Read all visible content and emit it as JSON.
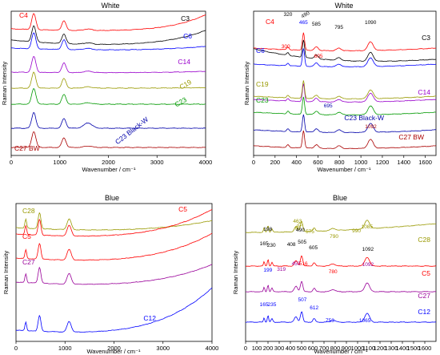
{
  "chart_data": [
    {
      "type": "line",
      "title": "White",
      "xlabel": "Wavenumber / cm⁻¹",
      "ylabel": "Raman Intensity",
      "xlim": [
        0,
        4000
      ],
      "xticks": [
        0,
        1000,
        2000,
        3000,
        4000
      ],
      "series": [
        {
          "name": "C3",
          "color": "#000000",
          "label_x": 3350,
          "peaks": [
            [
              465,
              1.0
            ],
            [
              1085,
              0.6
            ]
          ],
          "baseline": 0.95,
          "bow": 0.25,
          "rise": 0.55
        },
        {
          "name": "C4",
          "color": "#ff0000",
          "label_x": 120,
          "peaks": [
            [
              465,
              0.8
            ],
            [
              1085,
              0.5
            ]
          ],
          "baseline": 0.9,
          "bow": 0.1,
          "rise": 0.8
        },
        {
          "name": "C6",
          "color": "#0000ff",
          "label_x": 3400,
          "peaks": [
            [
              465,
              0.7
            ],
            [
              1085,
              0.5
            ]
          ],
          "baseline": 0.82,
          "bow": 0.1,
          "rise": 0.1
        },
        {
          "name": "C14",
          "color": "#9900cc",
          "label_x": 3350,
          "peaks": [
            [
              465,
              0.6
            ],
            [
              1085,
              0.5
            ]
          ],
          "baseline": 0.72,
          "bow": 0.03,
          "rise": 0.05
        },
        {
          "name": "C19",
          "color": "#999900",
          "label_x": 3600,
          "peaks": [
            [
              465,
              0.5
            ],
            [
              1085,
              0.4
            ]
          ],
          "baseline": 0.6,
          "bow": 0.0,
          "rise": 0.03
        },
        {
          "name": "C23",
          "color": "#009900",
          "label_x": 3300,
          "peaks": [
            [
              465,
              0.5
            ],
            [
              1085,
              0.4
            ]
          ],
          "baseline": 0.5,
          "bow": 0.0,
          "rise": 0.0
        },
        {
          "name": "C23 Black-W",
          "color": "#0000aa",
          "label_x": 3100,
          "peaks": [
            [
              465,
              0.5
            ],
            [
              1085,
              0.4
            ],
            [
              1580,
              0.25
            ]
          ],
          "baseline": 0.35,
          "bow": 0.0,
          "rise": 0.0
        },
        {
          "name": "C27 BW",
          "color": "#aa0000",
          "label_x": 60,
          "peaks": [
            [
              465,
              0.4
            ],
            [
              1085,
              0.3
            ]
          ],
          "baseline": 0.18,
          "bow": 0.0,
          "rise": 0.0
        }
      ]
    },
    {
      "type": "line",
      "title": "White",
      "xlabel": "Wavenumber / cm⁻¹",
      "ylabel": "Raman Intensity",
      "xlim": [
        0,
        1700
      ],
      "xticks": [
        0,
        200,
        400,
        600,
        800,
        1000,
        1200,
        1400,
        1600
      ],
      "series": [
        {
          "name": "C3",
          "color": "#000000",
          "label_x": 1560
        },
        {
          "name": "C4",
          "color": "#ff0000",
          "label_x": 60
        },
        {
          "name": "C6",
          "color": "#0000ff",
          "label_x": 40
        },
        {
          "name": "C14",
          "color": "#9900cc",
          "label_x": 1560
        },
        {
          "name": "C19",
          "color": "#999900",
          "label_x": 40
        },
        {
          "name": "C23",
          "color": "#009900",
          "label_x": 40
        },
        {
          "name": "C23 Black-W",
          "color": "#0000aa",
          "label_x": 1200
        },
        {
          "name": "C27 BW",
          "color": "#aa0000",
          "label_x": 1450
        }
      ],
      "peak_labels": [
        {
          "text": "320",
          "x": 320,
          "color": "#000000"
        },
        {
          "text": "465",
          "x": 465,
          "color": "#0000ff"
        },
        {
          "text": "490",
          "x": 490,
          "color": "#000000"
        },
        {
          "text": "585",
          "x": 585,
          "color": "#000000"
        },
        {
          "text": "795",
          "x": 795,
          "color": "#000000"
        },
        {
          "text": "1090",
          "x": 1090,
          "color": "#000000"
        },
        {
          "text": "300",
          "x": 300,
          "color": "#ff0000"
        },
        {
          "text": "605",
          "x": 605,
          "color": "#ff0000"
        },
        {
          "text": "695",
          "x": 695,
          "color": "#0000aa"
        },
        {
          "text": "1092",
          "x": 1092,
          "color": "#aa0000"
        }
      ]
    },
    {
      "type": "line",
      "title": "Blue",
      "xlabel": "Wavenumber / cm⁻¹",
      "ylabel": "Raman Intensity",
      "xlim": [
        0,
        4000
      ],
      "xticks": [
        0,
        1000,
        2000,
        3000,
        4000
      ],
      "series": [
        {
          "name": "C28",
          "color": "#999900",
          "label_x": 150
        },
        {
          "name": "C5",
          "color": "#ff0000",
          "label_x": 3150
        },
        {
          "name": "C5",
          "color": "#ff0000",
          "label_x": 120
        },
        {
          "name": "C27",
          "color": "#990099",
          "label_x": 120
        },
        {
          "name": "C12",
          "color": "#0000ff",
          "label_x": 2800
        }
      ]
    },
    {
      "type": "line",
      "title": "Blue",
      "xlabel": "Wavenumber / cm⁻¹",
      "ylabel": "Raman Intensity",
      "xlim": [
        0,
        1700
      ],
      "xticks": [
        0,
        100,
        200,
        300,
        400,
        500,
        600,
        700,
        800,
        900,
        1000,
        1100,
        1200,
        1300,
        1400,
        1500,
        1600
      ],
      "series": [
        {
          "name": "C28",
          "color": "#999900",
          "label_x": 1610
        },
        {
          "name": "C5",
          "color": "#ff0000",
          "label_x": 1630
        },
        {
          "name": "C27",
          "color": "#990099",
          "label_x": 1620
        },
        {
          "name": "C12",
          "color": "#0000ff",
          "label_x": 1620
        }
      ],
      "peak_labels": [
        {
          "text": "463",
          "x": 463,
          "color": "#999900"
        },
        {
          "text": "482",
          "x": 482,
          "color": "#999900"
        },
        {
          "text": "575",
          "x": 575,
          "color": "#999900"
        },
        {
          "text": "790",
          "x": 790,
          "color": "#999900"
        },
        {
          "text": "990",
          "x": 990,
          "color": "#999900"
        },
        {
          "text": "1085",
          "x": 1085,
          "color": "#999900"
        },
        {
          "text": "198",
          "x": 198,
          "color": "#000000"
        },
        {
          "text": "490",
          "x": 490,
          "color": "#000000"
        },
        {
          "text": "165",
          "x": 165,
          "color": "#000000"
        },
        {
          "text": "230",
          "x": 230,
          "color": "#000000"
        },
        {
          "text": "408",
          "x": 408,
          "color": "#000000"
        },
        {
          "text": "505",
          "x": 505,
          "color": "#000000"
        },
        {
          "text": "605",
          "x": 605,
          "color": "#000000"
        },
        {
          "text": "1092",
          "x": 1092,
          "color": "#000000"
        },
        {
          "text": "516",
          "x": 516,
          "color": "#ff0000"
        },
        {
          "text": "780",
          "x": 780,
          "color": "#ff0000"
        },
        {
          "text": "450",
          "x": 450,
          "color": "#990099"
        },
        {
          "text": "319",
          "x": 319,
          "color": "#990099"
        },
        {
          "text": "199",
          "x": 199,
          "color": "#0000ff"
        },
        {
          "text": "1092",
          "x": 1092,
          "color": "#990099"
        },
        {
          "text": "165",
          "x": 165,
          "color": "#0000ff"
        },
        {
          "text": "235",
          "x": 235,
          "color": "#0000ff"
        },
        {
          "text": "507",
          "x": 507,
          "color": "#0000ff"
        },
        {
          "text": "612",
          "x": 612,
          "color": "#0000ff"
        },
        {
          "text": "753",
          "x": 753,
          "color": "#0000ff"
        },
        {
          "text": "1065",
          "x": 1065,
          "color": "#0000ff"
        }
      ]
    }
  ]
}
